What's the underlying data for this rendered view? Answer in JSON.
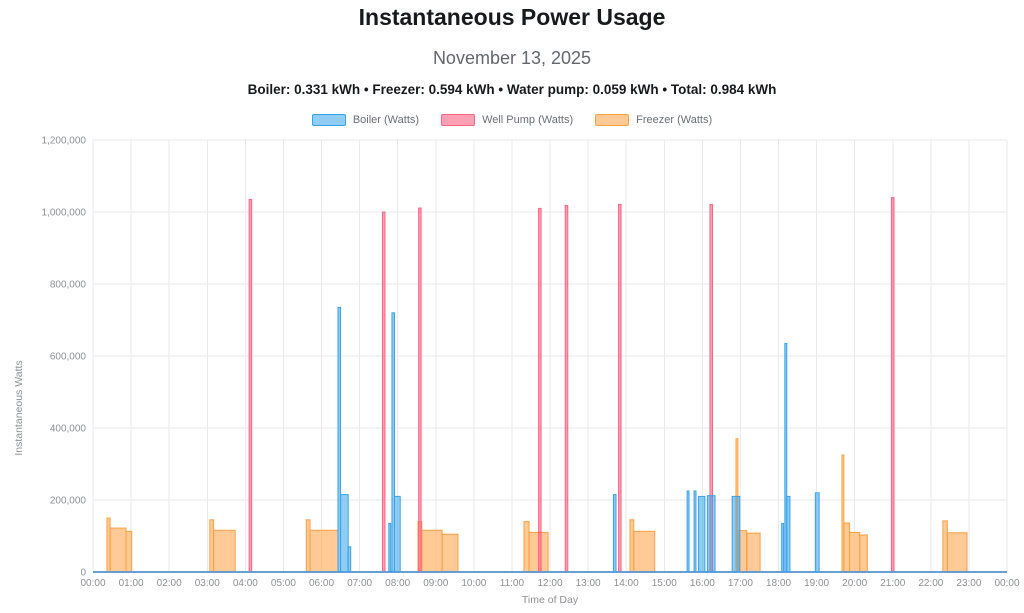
{
  "header": {
    "title": "Instantaneous Power Usage",
    "subtitle": "November 13, 2025",
    "summary": "Boiler: 0.331 kWh • Freezer: 0.594 kWh • Water pump: 0.059 kWh • Total: 0.984 kWh"
  },
  "chart_data": {
    "type": "area",
    "title": "Instantaneous Power Usage",
    "subtitle": "November 13, 2025",
    "xlabel": "Time of Day",
    "ylabel": "Instantaneous Watts",
    "ylim": [
      0,
      1200000
    ],
    "y_tick_step": 200000,
    "grid": true,
    "grid_color": "#eaeaea",
    "legend_position": "top",
    "x_ticks": [
      "00:00",
      "01:00",
      "02:00",
      "03:00",
      "04:00",
      "05:00",
      "06:00",
      "07:00",
      "08:00",
      "09:00",
      "10:00",
      "11:00",
      "12:00",
      "13:00",
      "14:00",
      "15:00",
      "16:00",
      "17:00",
      "18:00",
      "19:00",
      "20:00",
      "21:00",
      "22:00",
      "23:00",
      "00:00"
    ],
    "y_tick_labels": [
      "0",
      "200,000",
      "400,000",
      "600,000",
      "800,000",
      "1,000,000",
      "1,200,000"
    ],
    "series": [
      {
        "name": "Boiler (Watts)",
        "border": "#36A2EB",
        "fill": "rgba(54,162,235,0.55)",
        "segments_min_watts": [
          [
            386,
            390,
            735000
          ],
          [
            390,
            402,
            215000
          ],
          [
            402,
            406,
            70000
          ],
          [
            466,
            469,
            135000
          ],
          [
            471,
            475,
            720000
          ],
          [
            475,
            484,
            210000
          ],
          [
            820,
            824,
            215000
          ],
          [
            936,
            939,
            225000
          ],
          [
            947,
            950,
            225000
          ],
          [
            954,
            964,
            210000
          ],
          [
            968,
            980,
            212000
          ],
          [
            1007,
            1019,
            210000
          ],
          [
            1085,
            1088,
            135000
          ],
          [
            1090,
            1093,
            635000
          ],
          [
            1093,
            1098,
            210000
          ],
          [
            1138,
            1144,
            220000
          ]
        ]
      },
      {
        "name": "Well Pump (Watts)",
        "border": "#FF6384",
        "fill": "rgba(255,99,132,0.6)",
        "segments_min_watts": [
          [
            246,
            250,
            1035000
          ],
          [
            456,
            460,
            1000000
          ],
          [
            513,
            517,
            1011000
          ],
          [
            702,
            706,
            1010000
          ],
          [
            744,
            748,
            1018000
          ],
          [
            828,
            832,
            1021000
          ],
          [
            972,
            976,
            1021000
          ],
          [
            1258,
            1262,
            1040000
          ]
        ]
      },
      {
        "name": "Freezer (Watts)",
        "border": "#FF9F40",
        "fill": "rgba(255,159,64,0.55)",
        "segments_min_watts": [
          [
            22,
            27,
            150000
          ],
          [
            27,
            52,
            122000
          ],
          [
            52,
            61,
            113000
          ],
          [
            184,
            190,
            145000
          ],
          [
            190,
            224,
            116000
          ],
          [
            336,
            342,
            145000
          ],
          [
            342,
            386,
            116000
          ],
          [
            512,
            518,
            140000
          ],
          [
            518,
            550,
            116000
          ],
          [
            550,
            575,
            105000
          ],
          [
            679,
            687,
            140000
          ],
          [
            687,
            717,
            110000
          ],
          [
            846,
            852,
            145000
          ],
          [
            852,
            885,
            113000
          ],
          [
            1013,
            1016,
            370000
          ],
          [
            1016,
            1030,
            115000
          ],
          [
            1030,
            1051,
            108000
          ],
          [
            1180,
            1183,
            325000
          ],
          [
            1183,
            1192,
            136000
          ],
          [
            1192,
            1208,
            110000
          ],
          [
            1208,
            1220,
            103000
          ],
          [
            1339,
            1346,
            142000
          ],
          [
            1346,
            1377,
            109000
          ]
        ]
      }
    ]
  }
}
